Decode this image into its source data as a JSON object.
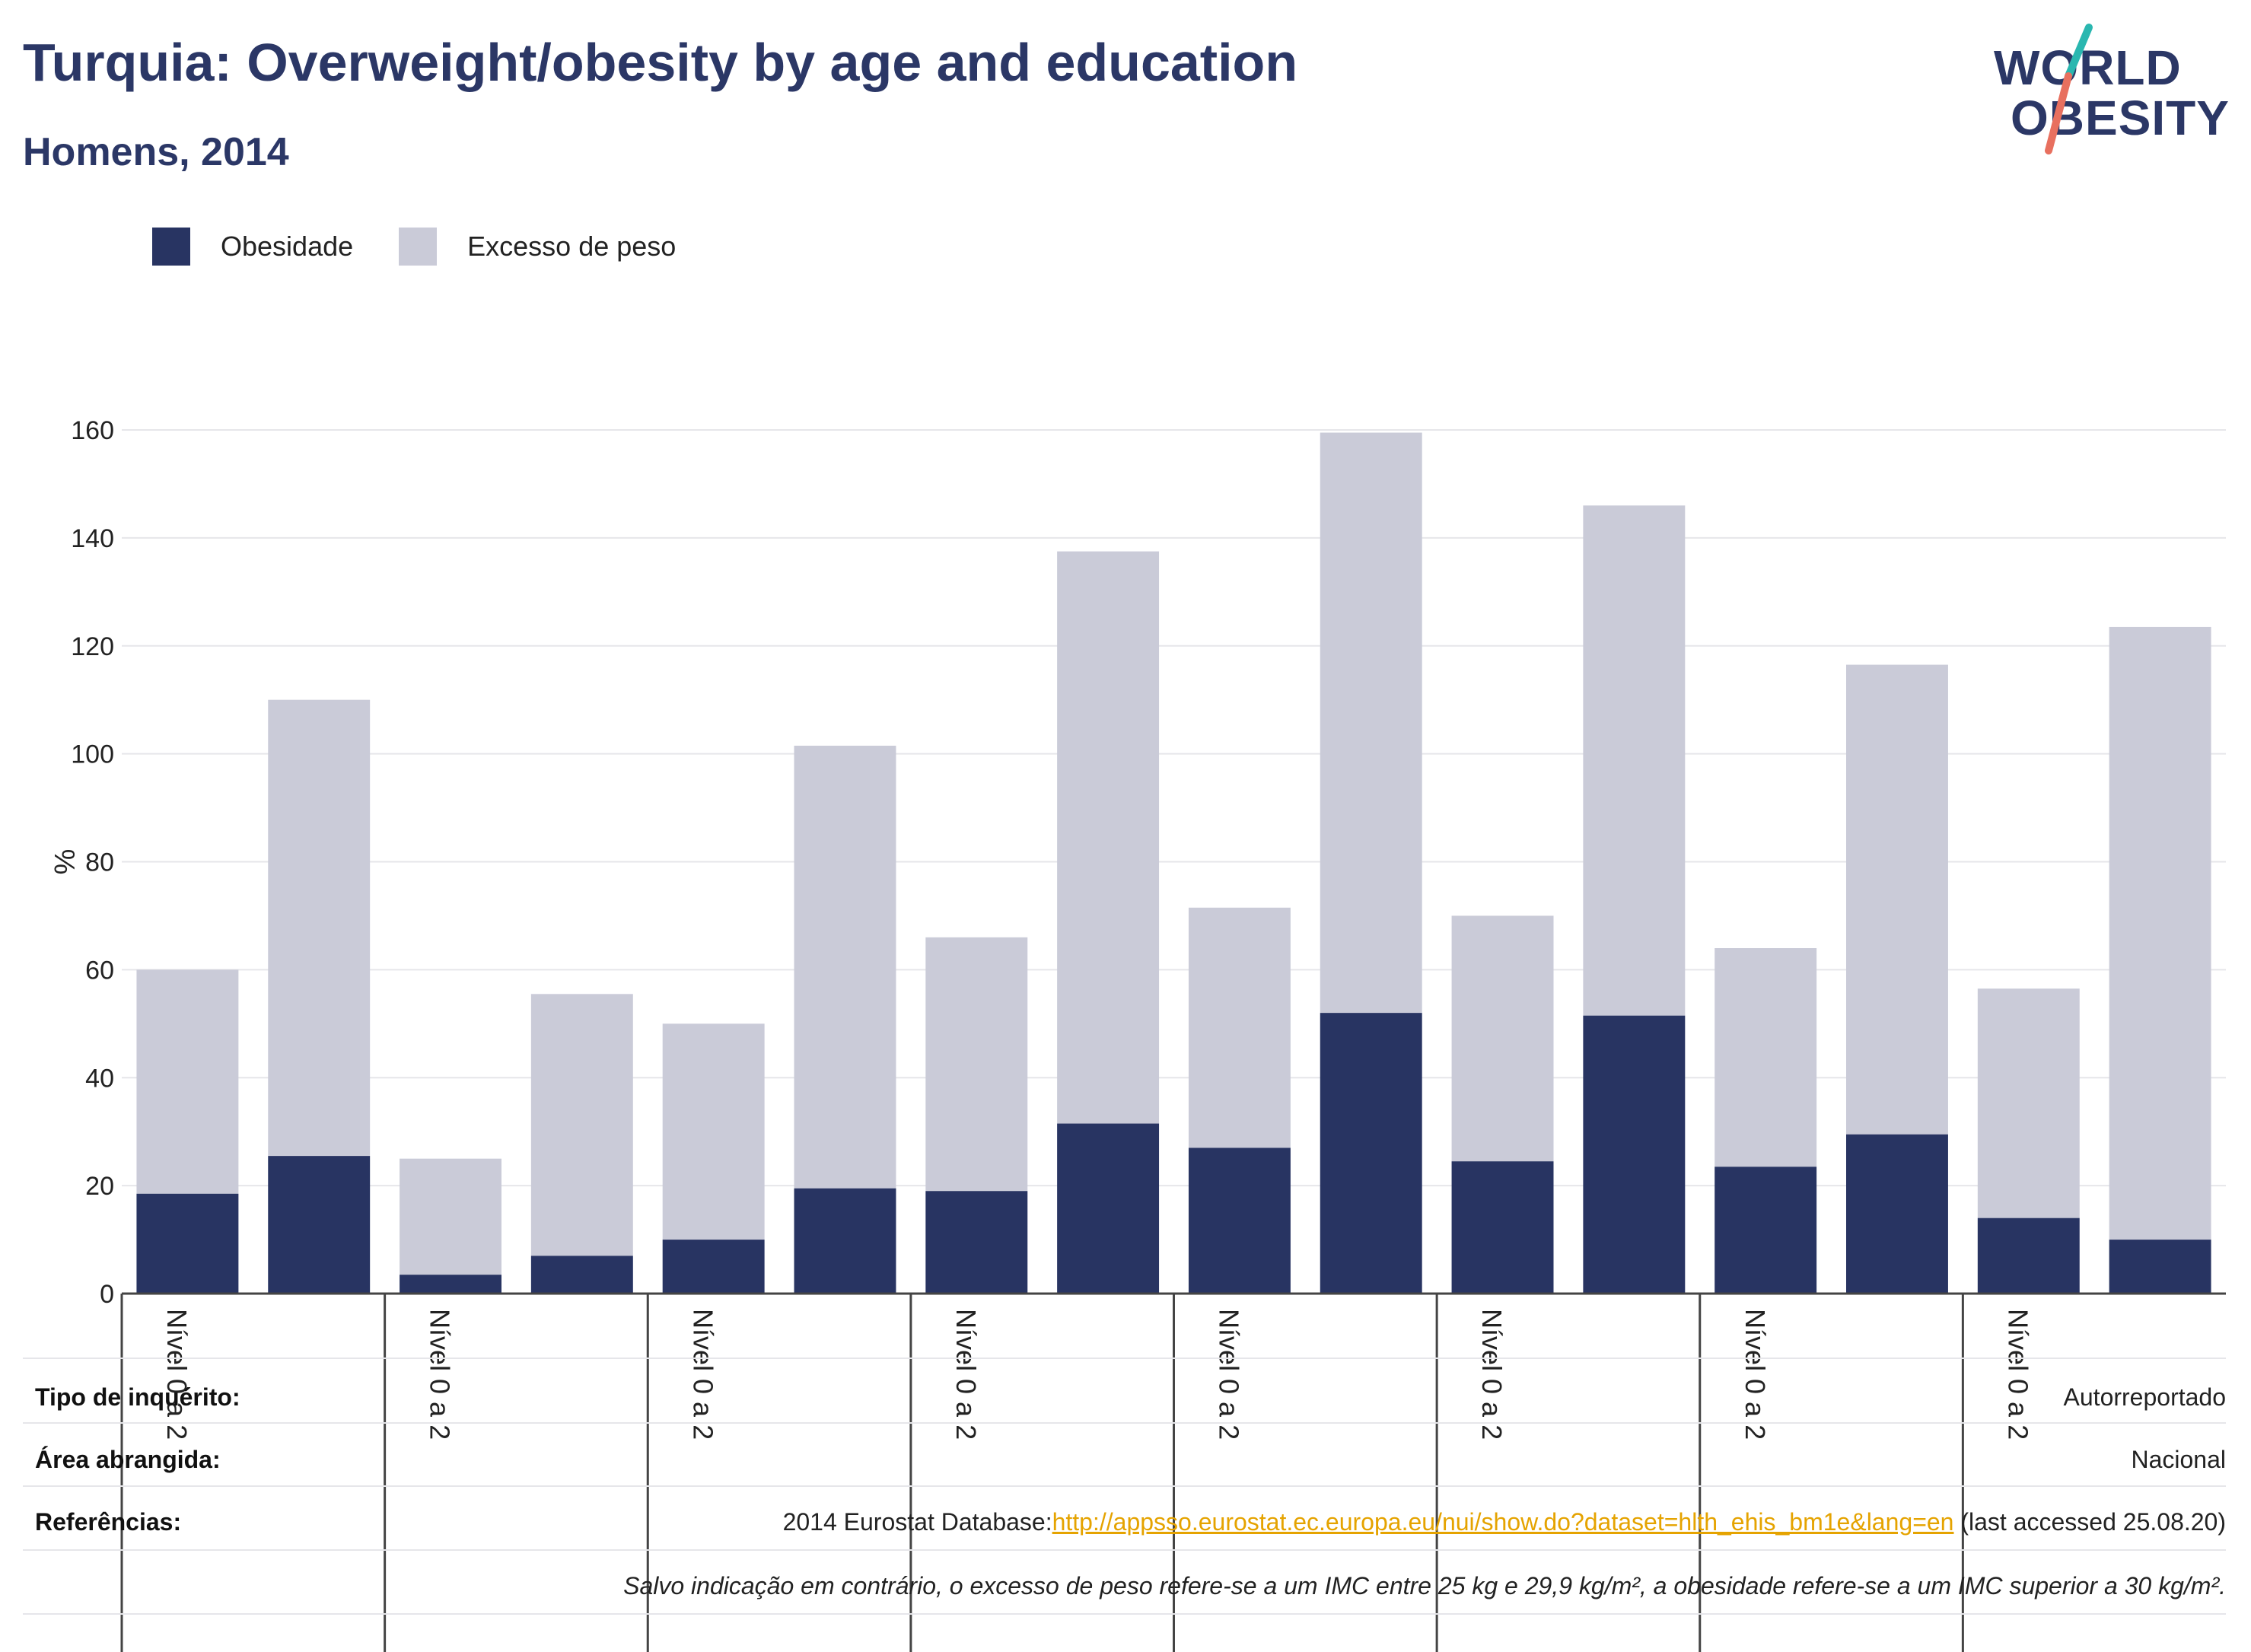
{
  "title": "Turquia: Overweight/obesity by age and education",
  "subtitle": "Homens, 2014",
  "logo": {
    "line1": "WORLD",
    "line2": "OBESITY"
  },
  "colors": {
    "obesity": "#283462",
    "overweight": "#cacbd8",
    "title": "#2b3766",
    "link": "#e5a300",
    "logo_teal": "#2ab7b0",
    "logo_coral": "#e8705f"
  },
  "legend": {
    "obesity": "Obesidade",
    "overweight": "Excesso de peso"
  },
  "chart_data": {
    "type": "bar",
    "stacked": true,
    "ylabel": "%",
    "ylim": [
      0,
      160
    ],
    "yticks": [
      0,
      20,
      40,
      60,
      80,
      100,
      120,
      140,
      160
    ],
    "grid": true,
    "legend_position": "top-left",
    "group_labels": [
      "Nível 0 a 2",
      "Nível 0 a 2",
      "Nível 0 a 2",
      "Nível 0 a 2",
      "Nível 0 a 2",
      "Nível 0 a 2",
      "Nível 0 a 2",
      "Nível 0 a 2"
    ],
    "series": [
      {
        "name": "Obesidade",
        "values": [
          18.5,
          25.5,
          3.5,
          7,
          10,
          19.5,
          19,
          31.5,
          27,
          52,
          24.5,
          51.5,
          23.5,
          29.5,
          14,
          10
        ]
      },
      {
        "name": "Excesso de peso",
        "values": [
          41.5,
          84.5,
          21.5,
          48.5,
          40,
          82,
          47,
          106,
          44.5,
          107.5,
          45.5,
          94.5,
          40.5,
          87,
          42.5,
          113.5
        ]
      }
    ]
  },
  "footer": {
    "survey_type_label": "Tipo de inquérito:",
    "survey_type_value": "Autorreportado",
    "coverage_label": "Área abrangida:",
    "coverage_value": "Nacional",
    "references_label": "Referências:",
    "references_prefix": "2014 Eurostat Database:",
    "references_link": "http://appsso.eurostat.ec.europa.eu/nui/show.do?dataset=hlth_ehis_bm1e&lang=en",
    "references_suffix": " (last accessed 25.08.20)",
    "note": "Salvo indicação em contrário, o excesso de peso refere-se a um IMC entre 25 kg e 29,9 kg/m², a obesidade refere-se a um IMC superior a 30 kg/m²."
  }
}
